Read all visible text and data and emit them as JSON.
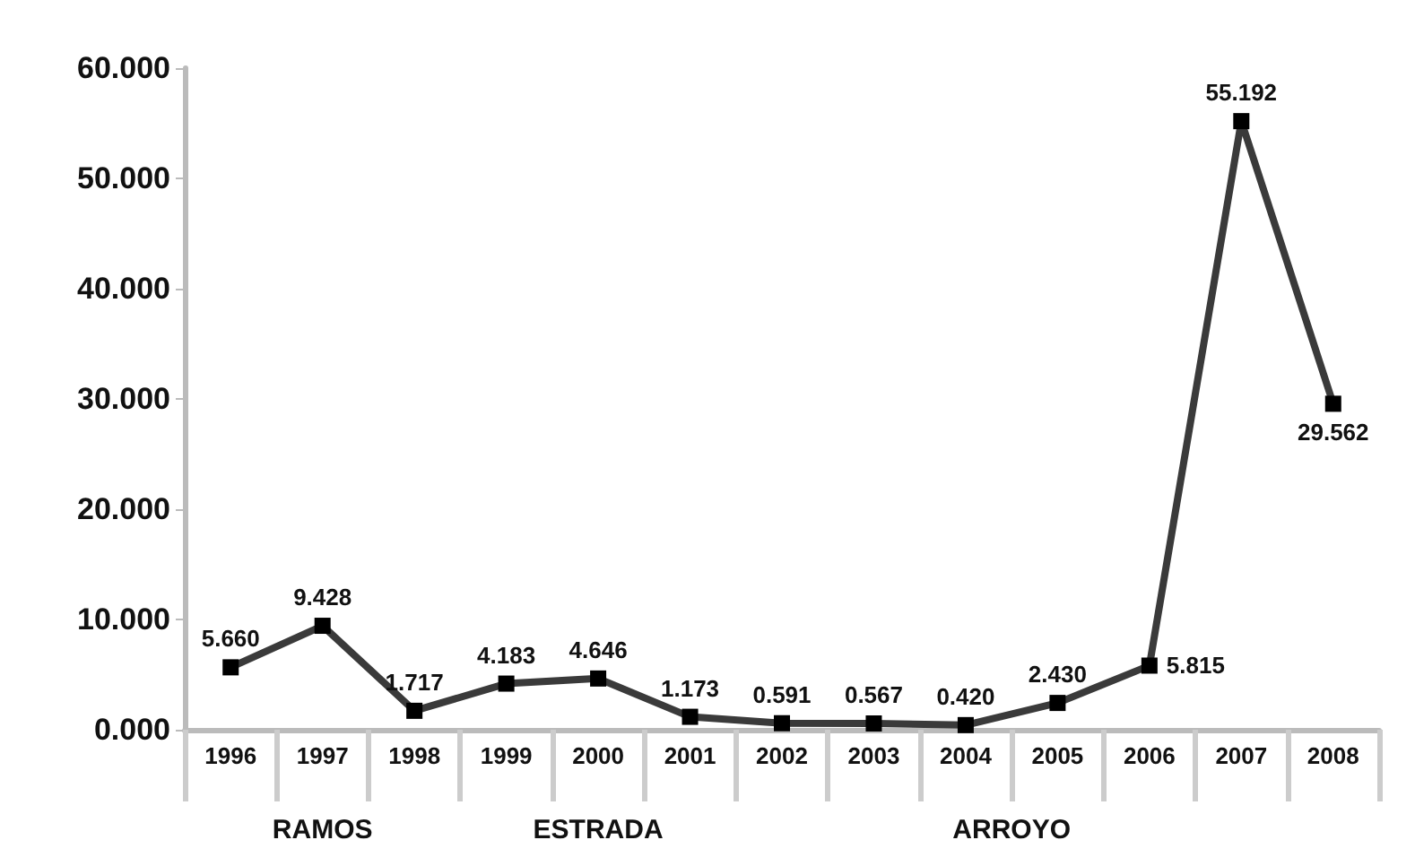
{
  "chart_data": {
    "type": "line",
    "categories": [
      "1996",
      "1997",
      "1998",
      "1999",
      "2000",
      "2001",
      "2002",
      "2003",
      "2004",
      "2005",
      "2006",
      "2007",
      "2008"
    ],
    "series": [
      {
        "color": "#3a3a3a",
        "values": [
          5.66,
          9.428,
          1.717,
          4.183,
          4.646,
          1.173,
          0.591,
          0.567,
          0.42,
          2.43,
          5.815,
          55.192,
          29.562
        ],
        "value_labels": [
          "5.660",
          "9.428",
          "1.717",
          "4.183",
          "4.646",
          "1.173",
          "0.591",
          "0.567",
          "0.420",
          "2.430",
          "5.815",
          "55.192",
          "29.562"
        ]
      }
    ],
    "ylim": [
      0,
      60
    ],
    "yticks": [
      {
        "value": 0,
        "label": "0.000"
      },
      {
        "value": 10,
        "label": "10.000"
      },
      {
        "value": 20,
        "label": "20.000"
      },
      {
        "value": 30,
        "label": "30.000"
      },
      {
        "value": 40,
        "label": "40.000"
      },
      {
        "value": 50,
        "label": "50.000"
      },
      {
        "value": 60,
        "label": "60.000"
      }
    ],
    "annotations": [
      "RAMOS",
      "ESTRADA",
      "ARROYO"
    ],
    "grid": false,
    "marker": "square",
    "line_style": "solid"
  }
}
